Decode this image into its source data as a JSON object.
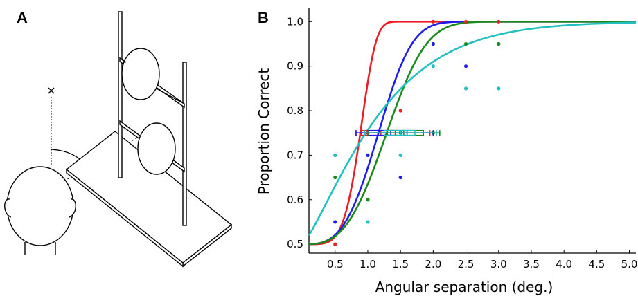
{
  "panels": {
    "a": "A",
    "b": "B"
  },
  "chart_data": {
    "type": "scatter",
    "xlabel": "Angular separation (deg.)",
    "ylabel": "Proportion Correct",
    "xlim": [
      0.1,
      5.1
    ],
    "ylim": [
      0.48,
      1.03
    ],
    "xticks": [
      0.5,
      1.0,
      1.5,
      2.0,
      2.5,
      3.0,
      3.5,
      4.0,
      4.5,
      5.0
    ],
    "xtick_labels": [
      "0.5",
      "1.0",
      "1.5",
      "2.0",
      "2.5",
      "3.0",
      "3.5",
      "4.0",
      "4.5",
      "5.0"
    ],
    "yticks": [
      0.5,
      0.6,
      0.7,
      0.8,
      0.9,
      1.0
    ],
    "ytick_labels": [
      "0.5",
      "0.6",
      "0.7",
      "0.8",
      "0.9",
      "1.0"
    ],
    "grid": false,
    "box_y": 0.75,
    "series": [
      {
        "color": "#ee1c24",
        "points": [
          [
            0.5,
            0.5
          ],
          [
            1.0,
            0.75
          ],
          [
            1.5,
            0.8
          ],
          [
            2.0,
            1.0
          ],
          [
            2.5,
            1.0
          ],
          [
            3.0,
            1.0
          ]
        ],
        "fit": {
          "threshold": 0.95,
          "slope": 5.2
        },
        "box": {
          "min": 0.82,
          "q1": 0.9,
          "median": 1.2,
          "q3": 1.42,
          "max": 1.95
        }
      },
      {
        "color": "#1c1cf0",
        "points": [
          [
            0.5,
            0.55
          ],
          [
            1.0,
            0.7
          ],
          [
            1.5,
            0.65
          ],
          [
            2.0,
            0.95
          ],
          [
            2.5,
            0.9
          ],
          [
            3.0,
            0.95
          ]
        ],
        "fit": {
          "threshold": 1.3,
          "slope": 3.3
        },
        "box": {
          "min": 0.82,
          "q1": 1.0,
          "median": 1.35,
          "q3": 1.6,
          "max": 2.0
        }
      },
      {
        "color": "#1a8a1a",
        "points": [
          [
            0.5,
            0.65
          ],
          [
            1.0,
            0.6
          ],
          [
            1.5,
            0.75
          ],
          [
            2.0,
            0.75
          ],
          [
            2.5,
            0.95
          ],
          [
            3.0,
            0.95
          ]
        ],
        "fit": {
          "threshold": 1.45,
          "slope": 3.1
        },
        "box": {
          "min": 1.0,
          "q1": 1.3,
          "median": 1.55,
          "q3": 1.85,
          "max": 2.1
        }
      },
      {
        "color": "#22c0c0",
        "points": [
          [
            0.5,
            0.7
          ],
          [
            1.0,
            0.55
          ],
          [
            1.5,
            0.7
          ],
          [
            2.0,
            0.9
          ],
          [
            2.5,
            0.85
          ],
          [
            3.0,
            0.85
          ]
        ],
        "fit": {
          "threshold": 1.3,
          "slope": 1.25
        },
        "box": {
          "min": 0.95,
          "q1": 1.25,
          "median": 1.5,
          "q3": 1.72,
          "max": 2.05
        }
      }
    ]
  }
}
